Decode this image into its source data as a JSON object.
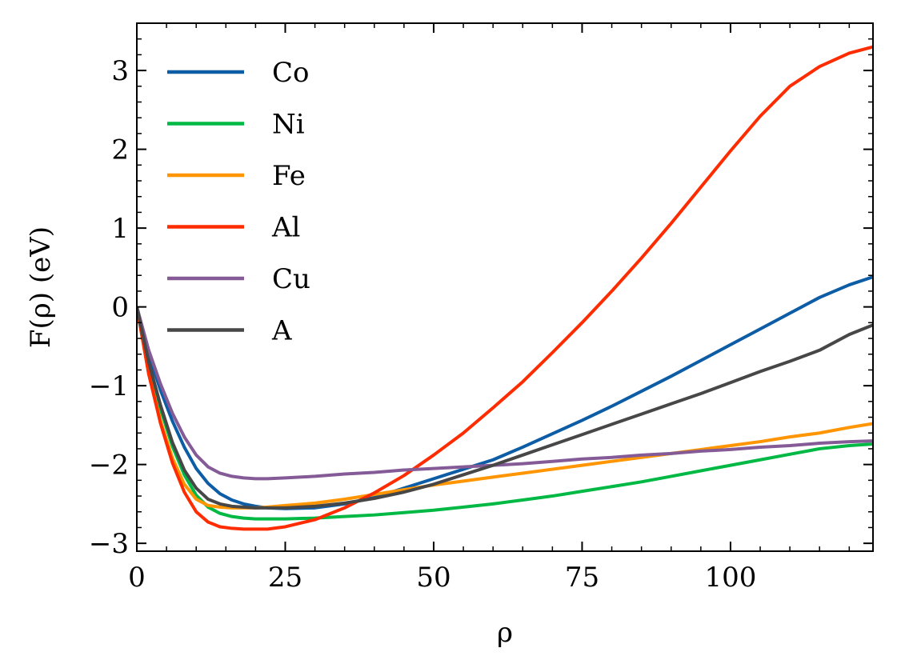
{
  "chart_data": {
    "type": "line",
    "title": "",
    "xlabel": "ρ",
    "ylabel": "F(ρ) (eV)",
    "xlim": [
      0,
      124
    ],
    "ylim": [
      -3.1,
      3.6
    ],
    "xticks": [
      0,
      25,
      50,
      75,
      100
    ],
    "xtick_labels": [
      "0",
      "25",
      "50",
      "75",
      "100"
    ],
    "yticks": [
      -3,
      -2,
      -1,
      0,
      1,
      2,
      3
    ],
    "ytick_labels": [
      "−3",
      "−2",
      "−1",
      "0",
      "1",
      "2",
      "3"
    ],
    "x_minor_step": 5,
    "y_minor_step": 0.2,
    "grid": false,
    "legend_position": "top-left",
    "series": [
      {
        "name": "Co",
        "color": "#0C5DA5",
        "x": [
          0,
          2,
          4,
          6,
          8,
          10,
          12,
          14,
          16,
          18,
          20,
          22,
          25,
          30,
          35,
          40,
          45,
          50,
          55,
          60,
          65,
          70,
          75,
          80,
          85,
          90,
          95,
          100,
          105,
          110,
          115,
          120,
          124
        ],
        "y": [
          0.0,
          -0.6,
          -1.06,
          -1.45,
          -1.78,
          -2.05,
          -2.24,
          -2.37,
          -2.45,
          -2.5,
          -2.53,
          -2.55,
          -2.56,
          -2.55,
          -2.5,
          -2.42,
          -2.3,
          -2.18,
          -2.06,
          -1.94,
          -1.78,
          -1.61,
          -1.44,
          -1.26,
          -1.07,
          -0.88,
          -0.68,
          -0.48,
          -0.28,
          -0.08,
          0.12,
          0.28,
          0.38
        ]
      },
      {
        "name": "Ni",
        "color": "#00B945",
        "x": [
          0,
          2,
          4,
          6,
          8,
          10,
          12,
          14,
          16,
          18,
          20,
          22,
          25,
          30,
          35,
          40,
          45,
          50,
          55,
          60,
          65,
          70,
          75,
          80,
          85,
          90,
          95,
          100,
          105,
          110,
          115,
          120,
          124
        ],
        "y": [
          0.0,
          -0.75,
          -1.3,
          -1.77,
          -2.13,
          -2.39,
          -2.54,
          -2.62,
          -2.66,
          -2.68,
          -2.69,
          -2.69,
          -2.69,
          -2.68,
          -2.66,
          -2.64,
          -2.61,
          -2.58,
          -2.54,
          -2.5,
          -2.45,
          -2.4,
          -2.34,
          -2.28,
          -2.22,
          -2.15,
          -2.08,
          -2.01,
          -1.94,
          -1.87,
          -1.8,
          -1.76,
          -1.74
        ]
      },
      {
        "name": "Fe",
        "color": "#FF9500",
        "x": [
          0,
          2,
          4,
          6,
          8,
          10,
          12,
          14,
          16,
          18,
          20,
          22,
          25,
          30,
          35,
          40,
          45,
          50,
          55,
          60,
          65,
          70,
          75,
          80,
          85,
          90,
          95,
          100,
          105,
          110,
          115,
          120,
          124
        ],
        "y": [
          0.0,
          -0.85,
          -1.45,
          -1.92,
          -2.25,
          -2.44,
          -2.52,
          -2.54,
          -2.55,
          -2.55,
          -2.55,
          -2.54,
          -2.52,
          -2.49,
          -2.44,
          -2.38,
          -2.32,
          -2.26,
          -2.21,
          -2.16,
          -2.11,
          -2.06,
          -2.01,
          -1.96,
          -1.91,
          -1.86,
          -1.81,
          -1.76,
          -1.71,
          -1.65,
          -1.6,
          -1.53,
          -1.48
        ]
      },
      {
        "name": "Al",
        "color": "#FF2C00",
        "x": [
          0,
          2,
          4,
          6,
          8,
          10,
          12,
          14,
          16,
          18,
          20,
          22,
          25,
          30,
          35,
          40,
          45,
          50,
          55,
          60,
          65,
          70,
          75,
          80,
          85,
          90,
          95,
          100,
          105,
          110,
          115,
          120,
          124
        ],
        "y": [
          0.0,
          -0.85,
          -1.48,
          -1.98,
          -2.35,
          -2.6,
          -2.73,
          -2.79,
          -2.81,
          -2.82,
          -2.82,
          -2.82,
          -2.79,
          -2.7,
          -2.55,
          -2.36,
          -2.14,
          -1.88,
          -1.6,
          -1.28,
          -0.95,
          -0.58,
          -0.2,
          0.2,
          0.62,
          1.06,
          1.52,
          1.98,
          2.42,
          2.8,
          3.05,
          3.22,
          3.3
        ]
      },
      {
        "name": "Cu",
        "color": "#845B97",
        "x": [
          0,
          2,
          4,
          6,
          8,
          10,
          12,
          14,
          16,
          18,
          20,
          22,
          25,
          30,
          35,
          40,
          45,
          50,
          55,
          60,
          65,
          70,
          75,
          80,
          85,
          90,
          95,
          100,
          105,
          110,
          115,
          120,
          124
        ],
        "y": [
          0.0,
          -0.55,
          -0.98,
          -1.35,
          -1.65,
          -1.88,
          -2.03,
          -2.11,
          -2.15,
          -2.17,
          -2.18,
          -2.18,
          -2.17,
          -2.15,
          -2.12,
          -2.1,
          -2.07,
          -2.05,
          -2.03,
          -2.01,
          -1.99,
          -1.96,
          -1.93,
          -1.91,
          -1.88,
          -1.86,
          -1.83,
          -1.81,
          -1.78,
          -1.76,
          -1.73,
          -1.71,
          -1.7
        ]
      },
      {
        "name": "A",
        "color": "#474747",
        "x": [
          0,
          2,
          4,
          6,
          8,
          10,
          12,
          14,
          16,
          18,
          20,
          22,
          25,
          30,
          35,
          40,
          45,
          50,
          55,
          60,
          65,
          70,
          75,
          80,
          85,
          90,
          95,
          100,
          105,
          110,
          115,
          120,
          124
        ],
        "y": [
          0.0,
          -0.7,
          -1.25,
          -1.72,
          -2.07,
          -2.3,
          -2.44,
          -2.5,
          -2.53,
          -2.54,
          -2.55,
          -2.55,
          -2.55,
          -2.53,
          -2.49,
          -2.43,
          -2.35,
          -2.25,
          -2.13,
          -2.01,
          -1.88,
          -1.75,
          -1.62,
          -1.49,
          -1.36,
          -1.23,
          -1.1,
          -0.96,
          -0.82,
          -0.69,
          -0.55,
          -0.35,
          -0.23
        ]
      }
    ]
  }
}
